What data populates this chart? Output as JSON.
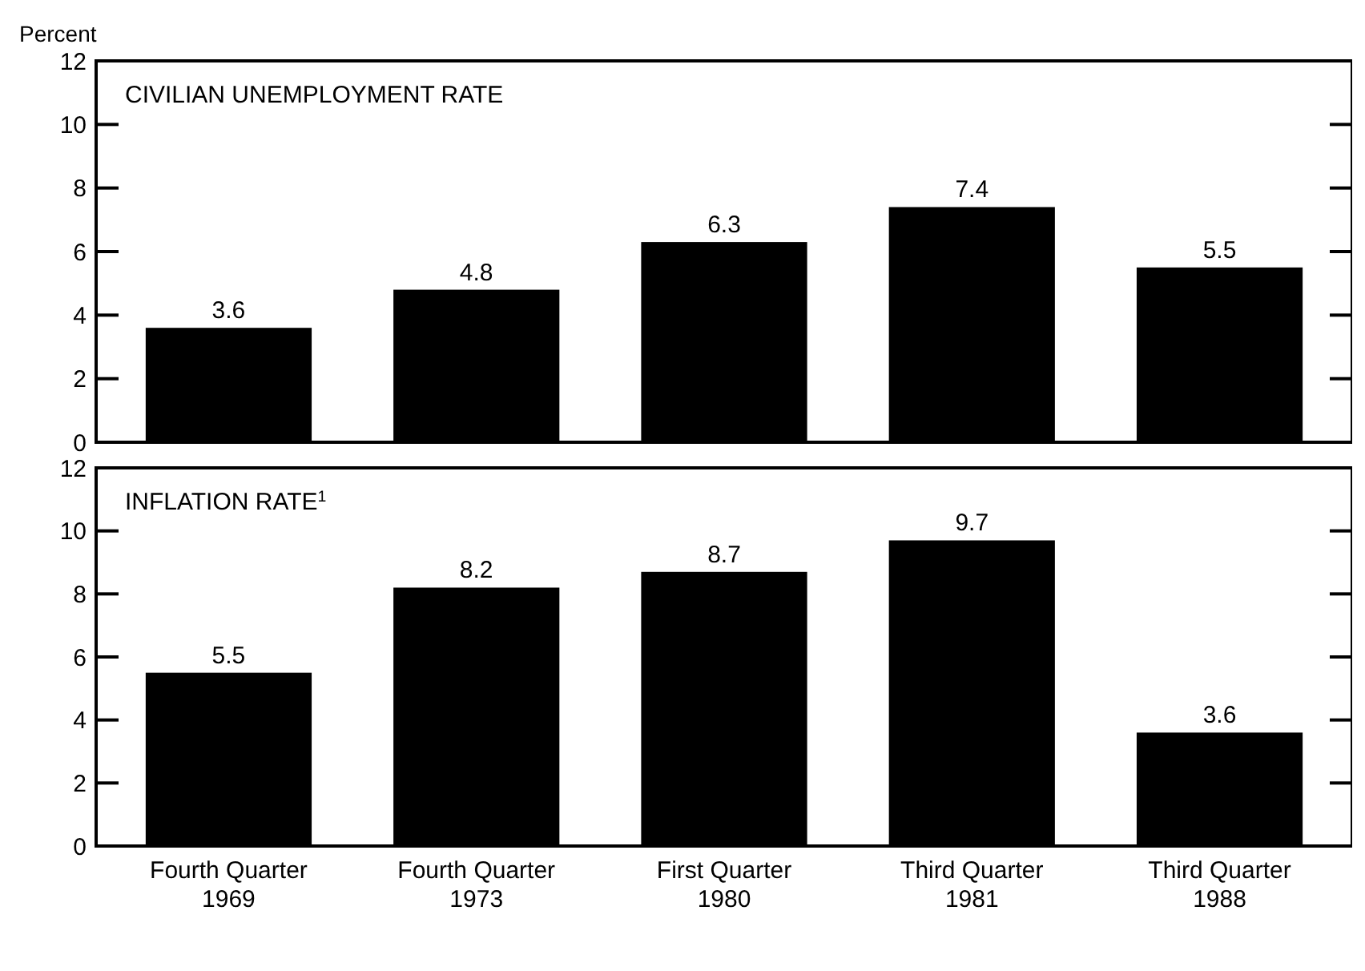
{
  "chart_data": [
    {
      "type": "bar",
      "title": "CIVILIAN UNEMPLOYMENT RATE",
      "ylabel": "Percent",
      "categories": [
        null,
        null,
        null,
        null,
        null
      ],
      "values": [
        3.6,
        4.8,
        6.3,
        7.4,
        5.5
      ],
      "color": "#000000",
      "ylim": [
        0,
        12
      ],
      "yticks": [
        0,
        2,
        4,
        6,
        8,
        10,
        12
      ],
      "data_labels": true,
      "tick_labels": "y"
    },
    {
      "type": "bar",
      "title": "INFLATION RATE$^{1}$",
      "categories": [
        "Fourth Quarter\n1969",
        "Fourth Quarter\n1973",
        "First Quarter\n1980",
        "Third Quarter\n1981",
        "Third Quarter\n1988"
      ],
      "values": [
        5.5,
        8.2,
        8.7,
        9.7,
        3.6
      ],
      "color": "#000000",
      "ylim": [
        0,
        12
      ],
      "yticks": [
        0,
        2,
        4,
        6,
        8,
        10,
        12
      ],
      "data_labels": true
    }
  ]
}
